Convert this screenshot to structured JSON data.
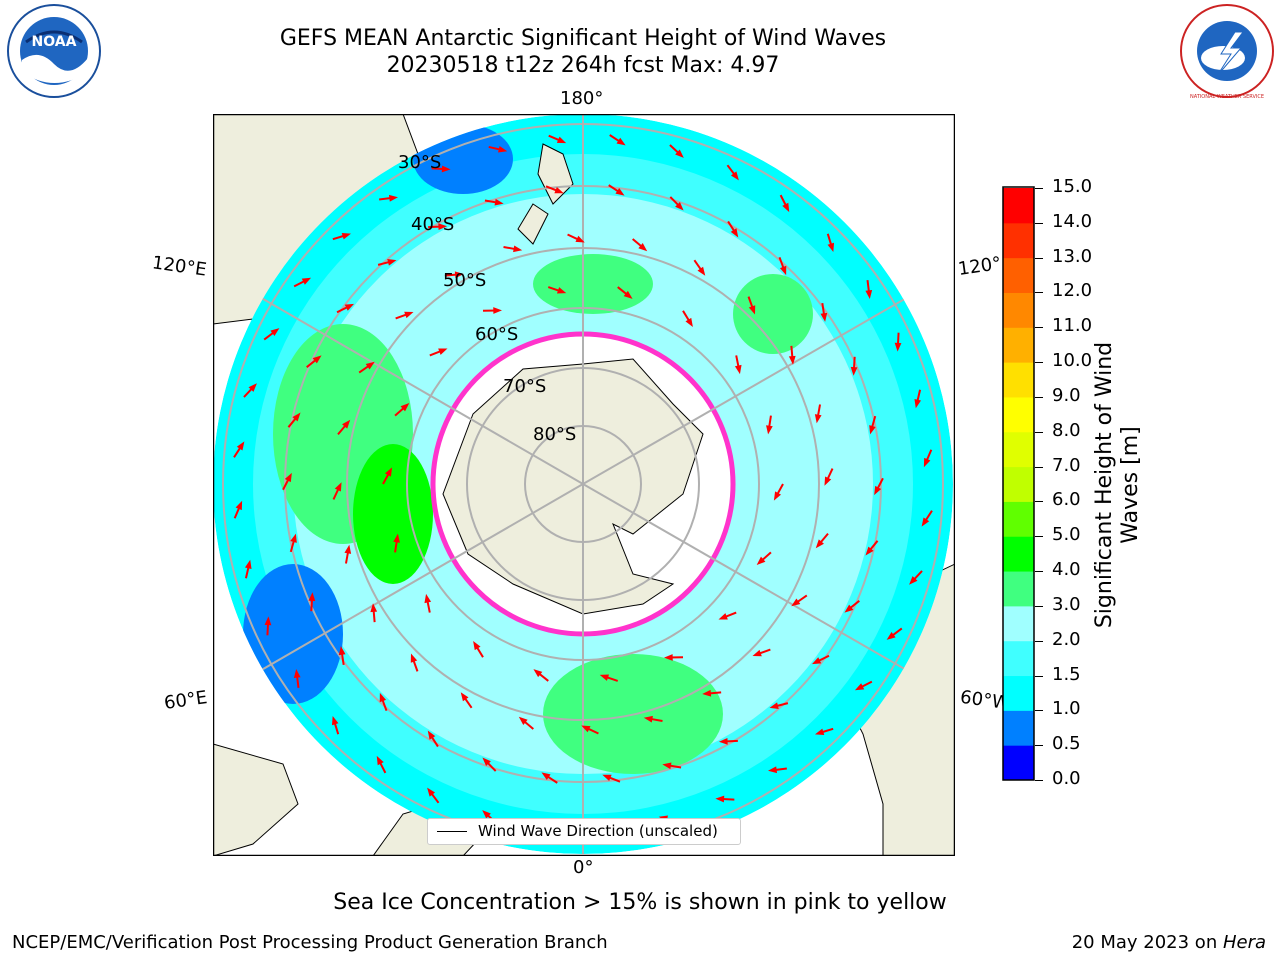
{
  "title": {
    "line1": "GEFS MEAN Antarctic Significant Height of Wind Waves",
    "line2": "20230518 t12z 264h fcst   Max: 4.97"
  },
  "logos": {
    "left": "NOAA",
    "right": "NATIONAL WEATHER SERVICE"
  },
  "longitude_labels": {
    "top": "180°",
    "bottom": "0°",
    "left_upper": "120°E",
    "left_lower": "60°E",
    "right_upper": "120°",
    "right_lower": "60°W"
  },
  "latitude_labels": [
    "30°S",
    "40°S",
    "50°S",
    "60°S",
    "70°S",
    "80°S"
  ],
  "legend": {
    "label": "Wind Wave Direction (unscaled)"
  },
  "colorbar": {
    "label_line1": "Significant Height of Wind",
    "label_line2": "Waves [m]",
    "ticks": [
      "0.0",
      "0.5",
      "1.0",
      "1.5",
      "2.0",
      "3.0",
      "4.0",
      "5.0",
      "6.0",
      "7.0",
      "8.0",
      "9.0",
      "10.0",
      "11.0",
      "12.0",
      "13.0",
      "14.0",
      "15.0"
    ],
    "colors": [
      "#0000ff",
      "#0080ff",
      "#00ffff",
      "#40ffff",
      "#a0ffff",
      "#40ff80",
      "#00ff00",
      "#60ff00",
      "#c0ff00",
      "#e0ff00",
      "#ffff00",
      "#ffe000",
      "#ffb000",
      "#ff8800",
      "#ff6000",
      "#ff3000",
      "#ff0000"
    ]
  },
  "map_colors": {
    "land": "#eeeedd",
    "sea_ice_white": "#ffffff",
    "ice_edge": "#ff33cc",
    "arrow": "#ff0000",
    "grid": "#b0b0b0"
  },
  "caption": "Sea Ice Concentration > 15% is shown in pink to yellow",
  "footer": {
    "left": "NCEP/EMC/Verification Post Processing Product Generation Branch",
    "right_prefix": "20 May 2023 on ",
    "right_host": "Hera"
  }
}
